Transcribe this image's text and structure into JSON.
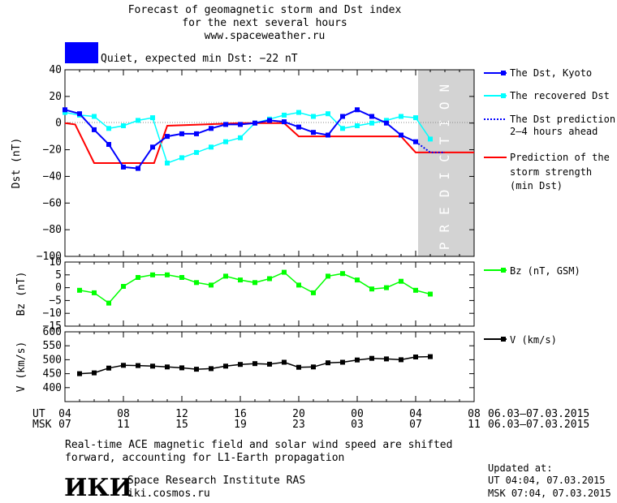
{
  "header": {
    "line1": "Forecast of geomagnetic storm and Dst index",
    "line2": "for the next several hours",
    "line3": "www.spaceweather.ru"
  },
  "status": {
    "label": "Quiet, expected min Dst: −22 nT",
    "color": "#0000ff"
  },
  "legend": {
    "dst_kyoto": "The Dst, Kyoto",
    "dst_recovered": "The recovered Dst",
    "dst_pred_1": "The Dst prediction",
    "dst_pred_2": "2–4 hours ahead",
    "storm_1": "Prediction of the",
    "storm_2": "storm strength",
    "storm_3": "(min Dst)",
    "bz": "Bz (nT, GSM)",
    "v": "V (km/s)"
  },
  "prediction_label": "PREDICTION",
  "time_axis": {
    "ut_label": "UT",
    "msk_label": "MSK",
    "ut_ticks": [
      "04",
      "08",
      "12",
      "16",
      "20",
      "00",
      "04",
      "08"
    ],
    "msk_ticks": [
      "07",
      "11",
      "15",
      "19",
      "23",
      "03",
      "07",
      "11"
    ],
    "ut_range": "06.03–07.03.2015",
    "msk_range": "06.03–07.03.2015"
  },
  "footer": {
    "note_1": "Real-time ACE magnetic field and solar wind speed are shifted",
    "note_2": "forward, accounting for L1-Earth propagation",
    "institute": "Space Research Institute RAS",
    "site": "iki.cosmos.ru",
    "logo_text": "ИКИ",
    "updated_label": "Updated at:",
    "updated_ut": "UT  04:04, 07.03.2015",
    "updated_msk": "MSK 07:04, 07.03.2015"
  },
  "colors": {
    "dst_kyoto": "#0000ff",
    "dst_recovered": "#00ffff",
    "storm_prediction": "#ff0000",
    "bz": "#00ff00",
    "v": "#000000",
    "prediction_band": "#d3d3d3"
  },
  "chart_data": [
    {
      "type": "line",
      "ylabel": "Dst (nT)",
      "ylim": [
        -100,
        40
      ],
      "yticks": [
        40,
        20,
        0,
        -20,
        -40,
        -60,
        -80,
        -100
      ],
      "xlim": [
        0,
        28
      ],
      "prediction_x": [
        24,
        28
      ],
      "series": [
        {
          "name": "The Dst, Kyoto",
          "x": [
            0,
            1,
            2,
            3,
            4,
            5,
            6,
            7,
            8,
            9,
            10,
            11,
            12,
            13,
            14,
            15,
            16,
            17,
            18,
            19,
            20,
            21,
            22,
            23,
            24
          ],
          "values": [
            10,
            7,
            -5,
            -16,
            -33,
            -34,
            -18,
            -10,
            -8,
            -8,
            -4,
            -1,
            -1,
            0,
            2,
            1,
            -3,
            -7,
            -9,
            5,
            10,
            5,
            0,
            -9,
            -14
          ]
        },
        {
          "name": "The recovered Dst",
          "x": [
            0,
            1,
            2,
            3,
            4,
            5,
            6,
            7,
            8,
            9,
            10,
            11,
            12,
            13,
            14,
            15,
            16,
            17,
            18,
            19,
            20,
            21,
            22,
            23,
            24,
            25
          ],
          "values": [
            8,
            6,
            5,
            -4,
            -2,
            2,
            4,
            -30,
            -26,
            -22,
            -18,
            -14,
            -11,
            0,
            3,
            6,
            8,
            5,
            7,
            -4,
            -2,
            0,
            2,
            5,
            4,
            -12
          ]
        },
        {
          "name": "The Dst prediction 2–4 hours ahead",
          "x": [
            24,
            25,
            26
          ],
          "values": [
            -14,
            -22,
            -22
          ]
        },
        {
          "name": "Prediction of the storm strength (min Dst)",
          "x": [
            0,
            0.7,
            2,
            5.9,
            6.1,
            7,
            12,
            15,
            16,
            23,
            24,
            28
          ],
          "values": [
            0,
            -1,
            -30,
            -30,
            -30,
            -2,
            0,
            0,
            -10,
            -10,
            -22,
            -22
          ]
        }
      ]
    },
    {
      "type": "line",
      "ylabel": "Bz (nT)",
      "ylim": [
        -15,
        10
      ],
      "yticks": [
        10,
        5,
        0,
        -5,
        -10,
        -15
      ],
      "xlim": [
        0,
        28
      ],
      "series": [
        {
          "name": "Bz (nT, GSM)",
          "x": [
            1,
            2,
            3,
            4,
            5,
            6,
            7,
            8,
            9,
            10,
            11,
            12,
            13,
            14,
            15,
            16,
            17,
            18,
            19,
            20,
            21,
            22,
            23,
            24,
            25
          ],
          "values": [
            -1,
            -2,
            -6,
            0.5,
            4,
            5,
            5,
            4,
            2,
            1,
            4.5,
            3,
            2,
            3.5,
            6,
            1,
            -2,
            4.5,
            5.5,
            3,
            -0.5,
            0,
            2.5,
            -1,
            -2.5
          ]
        }
      ]
    },
    {
      "type": "line",
      "ylabel": "V (km/s)",
      "ylim": [
        350,
        600
      ],
      "yticks": [
        600,
        550,
        500,
        450,
        400
      ],
      "xlim": [
        0,
        28
      ],
      "series": [
        {
          "name": "V (km/s)",
          "x": [
            1,
            2,
            3,
            4,
            5,
            6,
            7,
            8,
            9,
            10,
            11,
            12,
            13,
            14,
            15,
            16,
            17,
            18,
            19,
            20,
            21,
            22,
            23,
            24,
            25
          ],
          "values": [
            450,
            453,
            470,
            480,
            479,
            477,
            474,
            471,
            466,
            468,
            477,
            483,
            486,
            484,
            491,
            473,
            474,
            489,
            491,
            499,
            505,
            503,
            500,
            510,
            511
          ]
        }
      ]
    }
  ]
}
